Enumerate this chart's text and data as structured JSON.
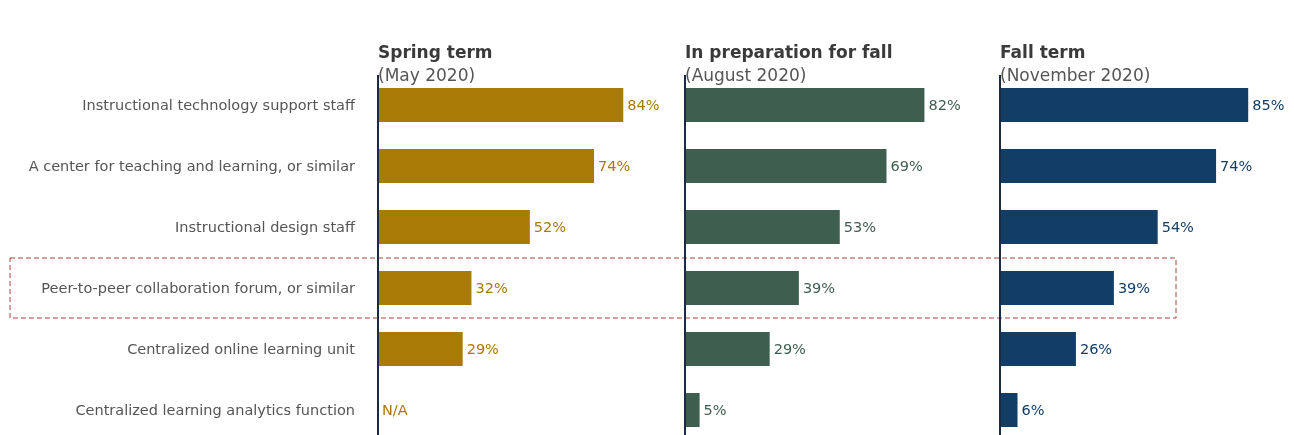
{
  "chart_data": [
    {
      "type": "bar",
      "orientation": "horizontal",
      "title": "Spring term",
      "subtitle": "(May 2020)",
      "categories": [
        "Instructional technology support staff",
        "A center for teaching and learning, or similar",
        "Instructional design staff",
        "Peer-to-peer collaboration forum, or similar",
        "Centralized online learning unit",
        "Centralized learning analytics function"
      ],
      "series": [
        {
          "color": "#a87a06",
          "values": [
            84,
            74,
            52,
            32,
            29,
            null
          ],
          "value_labels": [
            "84%",
            "74%",
            "52%",
            "32%",
            "29%",
            "N/A"
          ]
        }
      ],
      "tick_labels": "y"
    },
    {
      "type": "bar",
      "orientation": "horizontal",
      "title": "In preparation for fall",
      "subtitle": "(August 2020)",
      "series": [
        {
          "color": "#3e5f50",
          "values": [
            82,
            69,
            53,
            39,
            29,
            5
          ],
          "value_labels": [
            "82%",
            "69%",
            "53%",
            "39%",
            "29%",
            "5%"
          ]
        }
      ]
    },
    {
      "type": "bar",
      "orientation": "horizontal",
      "title": "Fall term",
      "subtitle": "(November 2020)",
      "series": [
        {
          "color": "#123e66",
          "values": [
            85,
            74,
            54,
            39,
            26,
            6
          ],
          "value_labels": [
            "85%",
            "74%",
            "54%",
            "39%",
            "26%",
            "6%"
          ]
        }
      ]
    }
  ]
}
